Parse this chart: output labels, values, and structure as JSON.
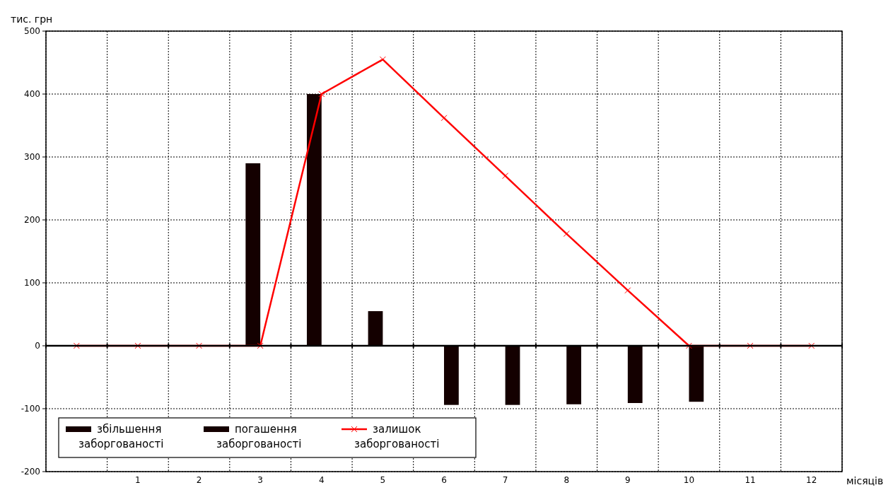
{
  "chart_data": {
    "type": "bar",
    "ylabel": "тис. грн",
    "xlabel": "місяців",
    "categories": [
      null,
      "1",
      "2",
      "3",
      "4",
      "5",
      "6",
      "7",
      "8",
      "9",
      "10",
      "11",
      "12"
    ],
    "series": [
      {
        "name": "збільшення заборгованості",
        "color": "#140000",
        "values": [
          null,
          null,
          null,
          290,
          400,
          55,
          null,
          null,
          null,
          null,
          null,
          null,
          null
        ]
      },
      {
        "name": "погашення заборгованості",
        "color": "#140000",
        "values": [
          null,
          null,
          null,
          null,
          null,
          null,
          -94,
          -94,
          -93,
          -91,
          -89,
          null,
          null
        ]
      },
      {
        "name": "залишок заборгованості",
        "type": "line",
        "color": "#ff0000",
        "marker": "cross",
        "values": [
          0,
          0,
          0,
          0,
          400,
          455,
          362,
          270,
          178,
          88,
          0,
          0,
          0
        ]
      }
    ],
    "ylim": [
      -200,
      500
    ],
    "yticks": [
      -200,
      -100,
      0,
      100,
      200,
      300,
      400,
      500
    ],
    "grid": true,
    "legend": "bottom left"
  }
}
